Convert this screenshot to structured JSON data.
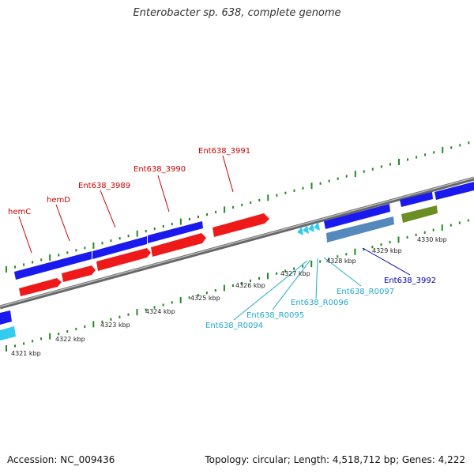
{
  "header": {
    "title": "Enterobacter sp. 638, complete genome"
  },
  "footer": {
    "accession": "Accession: NC_009436",
    "stats": "Topology: circular; Length: 4,518,712 bp; Genes: 4,222"
  },
  "colors": {
    "forward_cds": "#1a1aee",
    "reverse_cds": "#ee1a1a",
    "trna": "#33ccee",
    "pale_blue_feature": "#5588bb",
    "olive_feature": "#6b8e23",
    "backbone": "#888888",
    "ticks": "#228b22",
    "label_red": "#cc0000",
    "label_blue": "#0000bb",
    "label_cyan": "#22aacc"
  },
  "scale": {
    "ticks": [
      "4321 kbp",
      "4322 kbp",
      "4323 kbp",
      "4324 kbp",
      "4325 kbp",
      "4326 kbp",
      "4327 kbp",
      "4328 kbp",
      "4329 kbp",
      "4330 kbp"
    ]
  },
  "gene_labels": {
    "hemC": "hemC",
    "hemD": "hemD",
    "g3989": "Ent638_3989",
    "g3990": "Ent638_3990",
    "g3991": "Ent638_3991",
    "g3992": "Ent638_3992",
    "r0094": "Ent638_R0094",
    "r0095": "Ent638_R0095",
    "r0096": "Ent638_R0096",
    "r0097": "Ent638_R0097"
  }
}
